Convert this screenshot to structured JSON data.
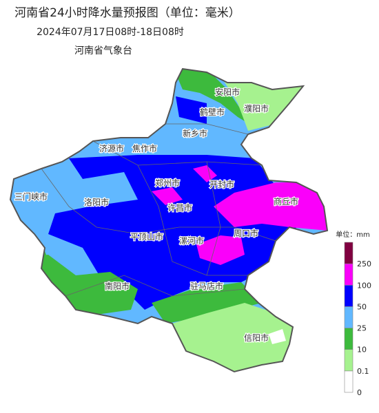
{
  "header": {
    "title": "河南省24小时降水量预报图（单位：毫米）",
    "subtitle": "2024年07月17日08时-18日08时",
    "agency": "河南省气象台"
  },
  "cities": [
    "安阳市",
    "鹤壁市",
    "濮阳市",
    "新乡市",
    "济源市",
    "焦作市",
    "郑州市",
    "开封市",
    "三门峡市",
    "洛阳市",
    "许昌市",
    "商丘市",
    "平顶山市",
    "漯河市",
    "周口市",
    "南阳市",
    "驻马店市",
    "信阳市"
  ],
  "legend": {
    "unit": "单位：mm",
    "levels": [
      0,
      0.1,
      10,
      25,
      50,
      100,
      250
    ],
    "colors": [
      "#ffffff",
      "#a6f28f",
      "#3dba3d",
      "#61b8ff",
      "#0000fe",
      "#fa00fa",
      "#800040"
    ]
  }
}
